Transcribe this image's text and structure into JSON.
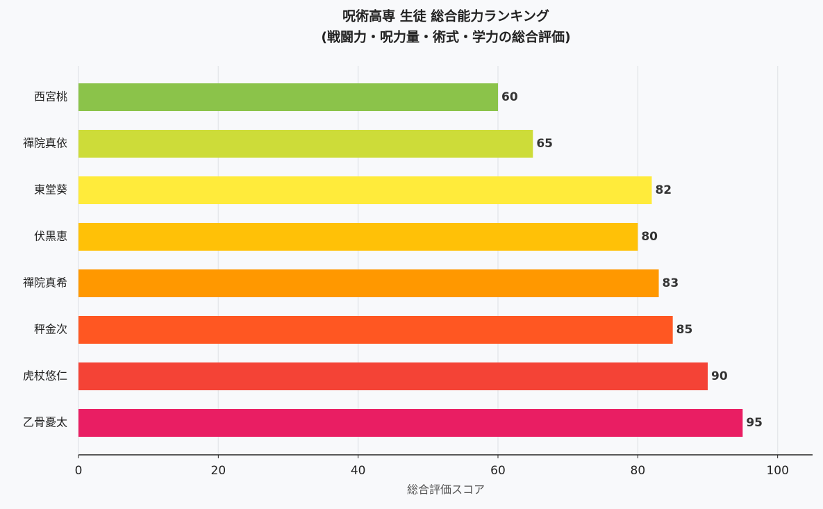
{
  "chart_data": {
    "type": "barh",
    "title": "呪術高専 生徒 総合能力ランキング",
    "subtitle": "(戦闘力・呪力量・術式・学力の総合評価)",
    "x_label": "総合評価スコア",
    "categories": [
      "西宮桃",
      "禪院真依",
      "東堂葵",
      "伏黒恵",
      "禪院真希",
      "秤金次",
      "虎杖悠仁",
      "乙骨憂太"
    ],
    "values": [
      60,
      65,
      82,
      80,
      83,
      85,
      90,
      95
    ],
    "colors": [
      "#8bc34a",
      "#cddc39",
      "#ffeb3b",
      "#ffc107",
      "#ff9800",
      "#ff5722",
      "#f44336",
      "#e91e63"
    ],
    "xlim": [
      0,
      105
    ],
    "xticks": [
      0,
      20,
      40,
      60,
      80,
      100
    ],
    "grid": true
  }
}
